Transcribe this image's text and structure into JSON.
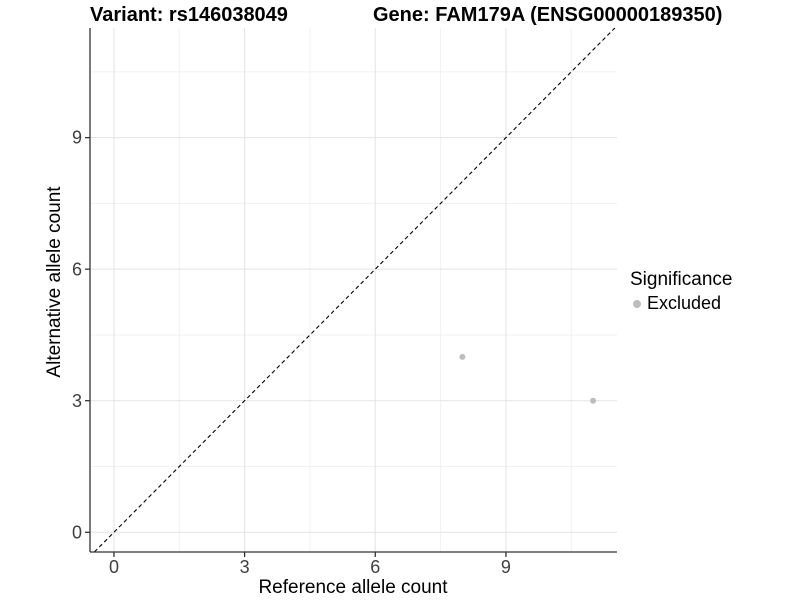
{
  "titles": {
    "left": "Variant: rs146038049",
    "right": "Gene: FAM179A (ENSG00000189350)"
  },
  "chart_data": {
    "type": "scatter",
    "title_left": "Variant: rs146038049",
    "title_right": "Gene: FAM179A (ENSG00000189350)",
    "xlabel": "Reference allele count",
    "ylabel": "Alternative allele count",
    "xlim": [
      -0.55,
      11.55
    ],
    "ylim": [
      -0.45,
      11.5
    ],
    "x_major_ticks": [
      0,
      3,
      6,
      9
    ],
    "y_major_ticks": [
      0,
      3,
      6,
      9
    ],
    "x_minor_ticks": [
      1.5,
      4.5,
      7.5,
      10.5
    ],
    "y_minor_ticks": [
      1.5,
      4.5,
      7.5,
      10.5
    ],
    "grid": "on",
    "legend_position": "right",
    "legend_title": "Significance",
    "series": [
      {
        "name": "Excluded",
        "color": "#bdbdbd",
        "points": [
          {
            "x": 8,
            "y": 4
          },
          {
            "x": 11,
            "y": 3
          }
        ]
      }
    ],
    "reference_line": {
      "type": "identity y=x",
      "style": "dashed",
      "color": "#000000"
    },
    "colors": {
      "background": "#ffffff",
      "grid_major": "#e3e3e3",
      "grid_minor": "#f1f1f1",
      "axis_line": "#333333",
      "tick_mark": "#333333",
      "tick_label": "#404040",
      "text": "#000000",
      "point": "#bdbdbd"
    }
  }
}
